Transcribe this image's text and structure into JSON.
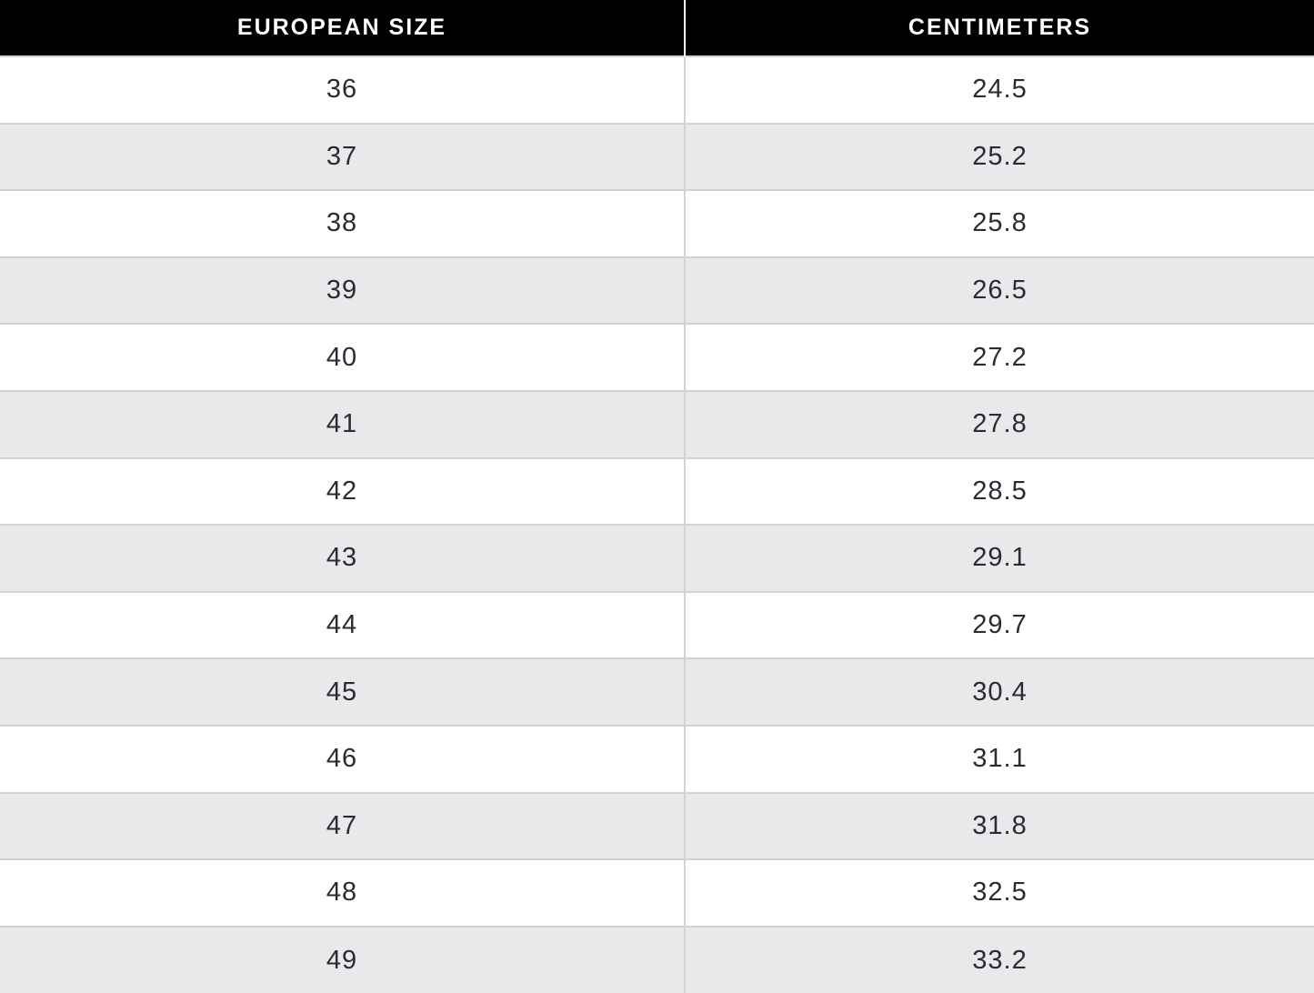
{
  "table": {
    "columns": [
      {
        "label": "EUROPEAN SIZE"
      },
      {
        "label": "CENTIMETERS"
      }
    ],
    "rows": [
      {
        "eu": "36",
        "cm": "24.5"
      },
      {
        "eu": "37",
        "cm": "25.2"
      },
      {
        "eu": "38",
        "cm": "25.8"
      },
      {
        "eu": "39",
        "cm": "26.5"
      },
      {
        "eu": "40",
        "cm": "27.2"
      },
      {
        "eu": "41",
        "cm": "27.8"
      },
      {
        "eu": "42",
        "cm": "28.5"
      },
      {
        "eu": "43",
        "cm": "29.1"
      },
      {
        "eu": "44",
        "cm": "29.7"
      },
      {
        "eu": "45",
        "cm": "30.4"
      },
      {
        "eu": "46",
        "cm": "31.1"
      },
      {
        "eu": "47",
        "cm": "31.8"
      },
      {
        "eu": "48",
        "cm": "32.5"
      },
      {
        "eu": "49",
        "cm": "33.2"
      }
    ]
  },
  "colors": {
    "header_bg": "#000000",
    "header_text": "#ffffff",
    "header_divider": "#ffffff",
    "row_odd_bg": "#ffffff",
    "row_even_bg": "#e9e8ea",
    "body_text": "#2b2b33",
    "grid_line": "#d2d2d4"
  },
  "chart_data": {
    "type": "table",
    "columns": [
      "EUROPEAN SIZE",
      "CENTIMETERS"
    ],
    "rows": [
      [
        36,
        24.5
      ],
      [
        37,
        25.2
      ],
      [
        38,
        25.8
      ],
      [
        39,
        26.5
      ],
      [
        40,
        27.2
      ],
      [
        41,
        27.8
      ],
      [
        42,
        28.5
      ],
      [
        43,
        29.1
      ],
      [
        44,
        29.7
      ],
      [
        45,
        30.4
      ],
      [
        46,
        31.1
      ],
      [
        47,
        31.8
      ],
      [
        48,
        32.5
      ],
      [
        49,
        33.2
      ]
    ]
  }
}
